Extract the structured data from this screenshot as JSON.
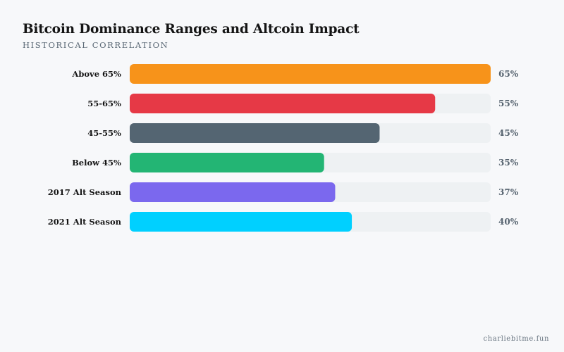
{
  "header": {
    "title": "Bitcoin Dominance Ranges and Altcoin Impact",
    "subtitle": "HISTORICAL CORRELATION"
  },
  "footer": {
    "credit": "charliebitme.fun"
  },
  "chart_data": {
    "type": "bar",
    "orientation": "horizontal",
    "categories": [
      "Above 65%",
      "55-65%",
      "45-55%",
      "Below 45%",
      "2017 Alt Season",
      "2021 Alt Season"
    ],
    "values": [
      65,
      55,
      45,
      35,
      37,
      40
    ],
    "value_labels": [
      "65%",
      "55%",
      "45%",
      "35%",
      "37%",
      "40%"
    ],
    "xlim": [
      0,
      65
    ],
    "colors": [
      "#f7931a",
      "#e63946",
      "#546572",
      "#23b574",
      "#7b68ee",
      "#00d0ff"
    ],
    "track_color": "#eef1f3",
    "grid": false,
    "legend": "none"
  }
}
